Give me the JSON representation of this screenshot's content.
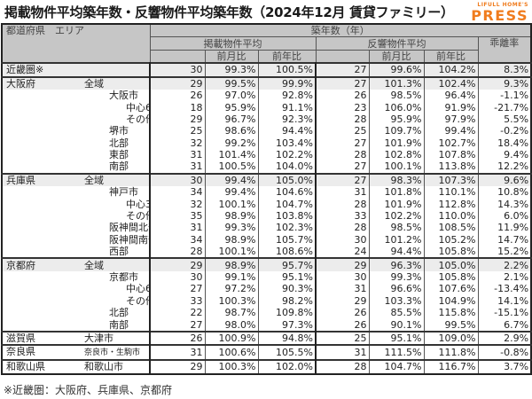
{
  "title": "掲載物件平均築年数・反響物件平均築年数（2024年12月 賃貸ファミリー）",
  "logo": {
    "small": "LIFULL HOME'S",
    "big": "PRESS",
    "color": "#f07c1e"
  },
  "header": {
    "region_area": "都道府県　エリア",
    "age_years": "築年数（年）",
    "listing_avg": "掲載物件平均",
    "response_avg": "反響物件平均",
    "divergence": "乖離率",
    "mom": "前月比",
    "yoy": "前年比"
  },
  "rows": [
    {
      "pref": "近畿圏※",
      "area": "",
      "indent": 0,
      "l": "30",
      "lm": "99.3%",
      "ly": "100.5%",
      "r": "27",
      "rm": "99.6%",
      "ry": "104.2%",
      "d": "8.3%"
    },
    {
      "pref": "大阪府",
      "area": "全域",
      "indent": 1,
      "l": "29",
      "lm": "99.5%",
      "ly": "99.9%",
      "r": "27",
      "rm": "101.3%",
      "ry": "102.4%",
      "d": "9.3%"
    },
    {
      "pref": "",
      "area": "大阪市",
      "indent": 2,
      "l": "26",
      "lm": "97.0%",
      "ly": "92.8%",
      "r": "26",
      "rm": "98.5%",
      "ry": "96.4%",
      "d": "-1.1%"
    },
    {
      "pref": "",
      "area": "中心6区",
      "indent": 3,
      "l": "18",
      "lm": "95.9%",
      "ly": "91.1%",
      "r": "23",
      "rm": "106.0%",
      "ry": "91.9%",
      "d": "-21.7%"
    },
    {
      "pref": "",
      "area": "その他区",
      "indent": 3,
      "l": "29",
      "lm": "96.7%",
      "ly": "92.3%",
      "r": "28",
      "rm": "95.9%",
      "ry": "97.9%",
      "d": "5.5%"
    },
    {
      "pref": "",
      "area": "堺市",
      "indent": 2,
      "l": "25",
      "lm": "98.6%",
      "ly": "94.4%",
      "r": "25",
      "rm": "109.7%",
      "ry": "99.4%",
      "d": "-0.2%"
    },
    {
      "pref": "",
      "area": "北部",
      "indent": 2,
      "l": "32",
      "lm": "99.2%",
      "ly": "103.4%",
      "r": "27",
      "rm": "101.9%",
      "ry": "102.7%",
      "d": "18.4%"
    },
    {
      "pref": "",
      "area": "東部",
      "indent": 2,
      "l": "31",
      "lm": "101.4%",
      "ly": "102.2%",
      "r": "28",
      "rm": "102.8%",
      "ry": "107.8%",
      "d": "9.4%"
    },
    {
      "pref": "",
      "area": "南部",
      "indent": 2,
      "l": "31",
      "lm": "100.5%",
      "ly": "104.0%",
      "r": "27",
      "rm": "100.1%",
      "ry": "113.8%",
      "d": "12.2%"
    },
    {
      "pref": "兵庫県",
      "area": "全域",
      "indent": 1,
      "l": "30",
      "lm": "99.4%",
      "ly": "105.0%",
      "r": "27",
      "rm": "98.3%",
      "ry": "107.3%",
      "d": "9.6%"
    },
    {
      "pref": "",
      "area": "神戸市",
      "indent": 2,
      "l": "34",
      "lm": "99.4%",
      "ly": "104.6%",
      "r": "31",
      "rm": "101.8%",
      "ry": "110.1%",
      "d": "10.8%"
    },
    {
      "pref": "",
      "area": "中心3区",
      "indent": 3,
      "l": "32",
      "lm": "100.1%",
      "ly": "104.7%",
      "r": "28",
      "rm": "101.9%",
      "ry": "112.8%",
      "d": "14.3%"
    },
    {
      "pref": "",
      "area": "その他区",
      "indent": 3,
      "l": "35",
      "lm": "98.9%",
      "ly": "103.8%",
      "r": "33",
      "rm": "102.2%",
      "ry": "110.0%",
      "d": "6.0%"
    },
    {
      "pref": "",
      "area": "阪神間北部",
      "indent": 2,
      "l": "31",
      "lm": "99.3%",
      "ly": "102.3%",
      "r": "28",
      "rm": "98.5%",
      "ry": "108.5%",
      "d": "11.9%"
    },
    {
      "pref": "",
      "area": "阪神間南部",
      "indent": 2,
      "l": "34",
      "lm": "98.9%",
      "ly": "105.7%",
      "r": "30",
      "rm": "101.2%",
      "ry": "105.2%",
      "d": "14.7%"
    },
    {
      "pref": "",
      "area": "西部",
      "indent": 2,
      "l": "28",
      "lm": "100.1%",
      "ly": "108.6%",
      "r": "24",
      "rm": "94.4%",
      "ry": "105.8%",
      "d": "15.2%"
    },
    {
      "pref": "京都府",
      "area": "全域",
      "indent": 1,
      "l": "29",
      "lm": "98.9%",
      "ly": "95.7%",
      "r": "29",
      "rm": "96.3%",
      "ry": "105.0%",
      "d": "2.2%"
    },
    {
      "pref": "",
      "area": "京都市",
      "indent": 2,
      "l": "30",
      "lm": "99.1%",
      "ly": "95.1%",
      "r": "30",
      "rm": "99.3%",
      "ry": "105.8%",
      "d": "2.1%"
    },
    {
      "pref": "",
      "area": "中心6区",
      "indent": 3,
      "l": "27",
      "lm": "97.2%",
      "ly": "90.3%",
      "r": "31",
      "rm": "96.6%",
      "ry": "107.6%",
      "d": "-13.4%"
    },
    {
      "pref": "",
      "area": "その他区",
      "indent": 3,
      "l": "33",
      "lm": "100.3%",
      "ly": "98.2%",
      "r": "29",
      "rm": "103.3%",
      "ry": "104.9%",
      "d": "14.1%"
    },
    {
      "pref": "",
      "area": "北部",
      "indent": 2,
      "l": "22",
      "lm": "98.7%",
      "ly": "109.8%",
      "r": "26",
      "rm": "85.5%",
      "ry": "115.8%",
      "d": "-15.1%"
    },
    {
      "pref": "",
      "area": "南部",
      "indent": 2,
      "l": "27",
      "lm": "98.0%",
      "ly": "97.3%",
      "r": "26",
      "rm": "90.1%",
      "ry": "99.5%",
      "d": "6.7%"
    },
    {
      "pref": "滋賀県",
      "area": "大津市",
      "indent": 1,
      "l": "26",
      "lm": "100.9%",
      "ly": "94.8%",
      "r": "25",
      "rm": "95.1%",
      "ry": "109.0%",
      "d": "2.9%"
    },
    {
      "pref": "奈良県",
      "area": "奈良市・生駒市",
      "indent": 1,
      "l": "31",
      "lm": "100.6%",
      "ly": "105.5%",
      "r": "31",
      "rm": "111.5%",
      "ry": "111.8%",
      "d": "-0.8%"
    },
    {
      "pref": "和歌山県",
      "area": "和歌山市",
      "indent": 1,
      "l": "29",
      "lm": "100.3%",
      "ly": "102.0%",
      "r": "28",
      "rm": "104.7%",
      "ry": "116.7%",
      "d": "3.7%"
    }
  ],
  "footnote": "※近畿圏：大阪府、兵庫県、京都府"
}
